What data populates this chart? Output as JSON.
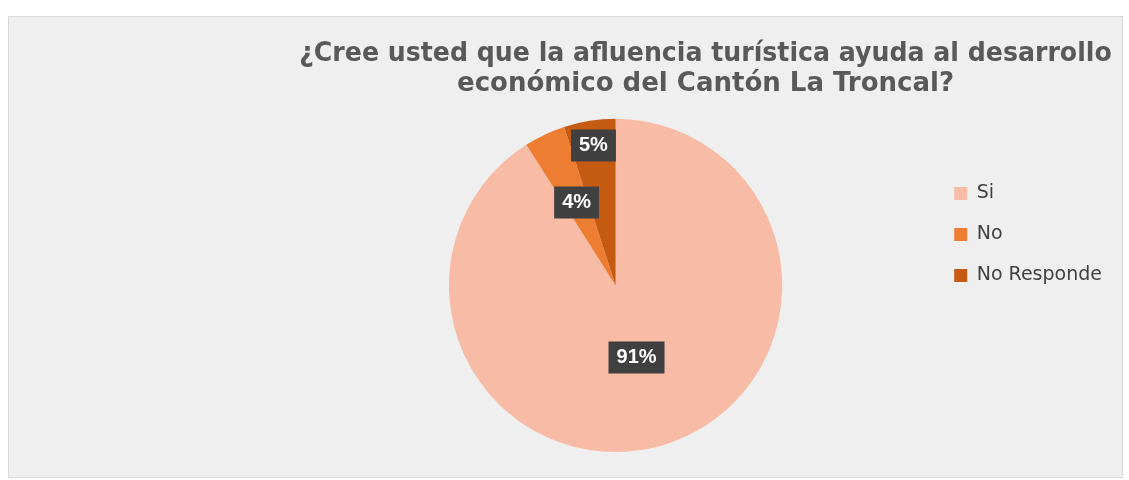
{
  "chart_data": {
    "type": "pie",
    "title": "¿Cree usted que la afluencia turística ayuda al desarrollo económico del Cantón La Troncal?",
    "categories": [
      "Si",
      "No",
      "No Responde"
    ],
    "values": [
      91,
      4,
      5
    ],
    "colors": [
      "#f8bba5",
      "#ed7d31",
      "#c55a11"
    ],
    "value_labels": [
      "91%",
      "4%",
      "5%"
    ],
    "legend": "right"
  }
}
